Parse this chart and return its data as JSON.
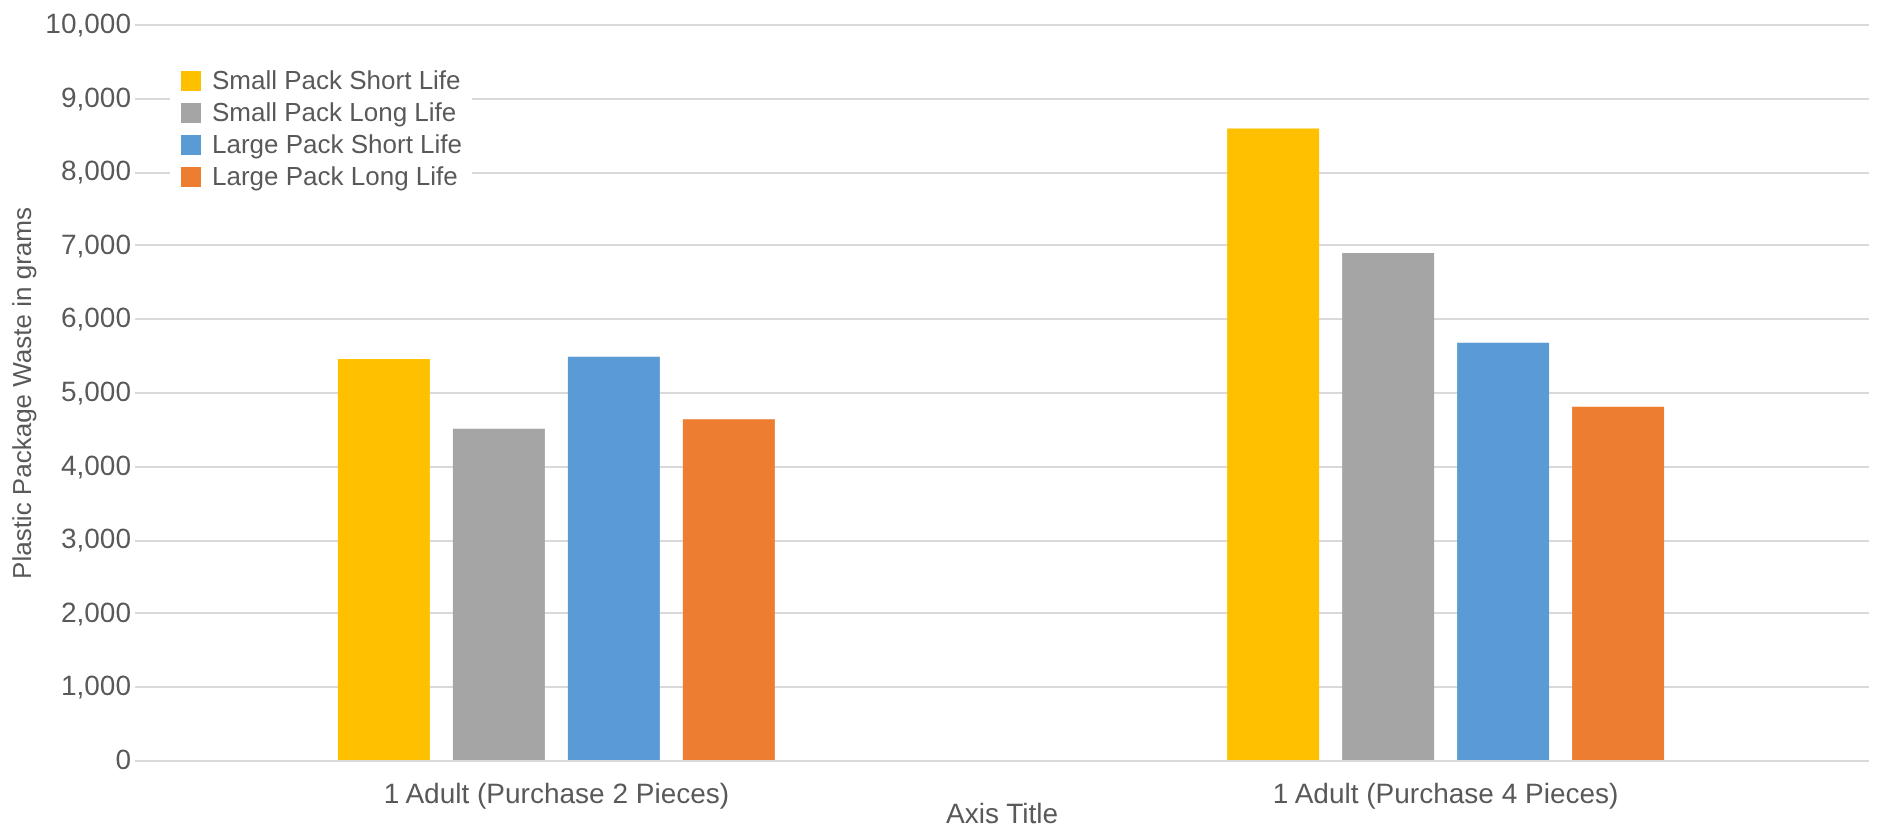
{
  "chart_data": {
    "type": "bar",
    "xlabel": "Axis Title",
    "ylabel": "Plastic Package Waste in grams",
    "categories": [
      "1 Adult (Purchase 2 Pieces)",
      "1 Adult (Purchase 4 Pieces)"
    ],
    "series": [
      {
        "name": "Small Pack Short Life",
        "color": "#ffc000",
        "values": [
          5450,
          8580
        ]
      },
      {
        "name": "Small Pack Long Life",
        "color": "#a5a5a5",
        "values": [
          4500,
          6890
        ]
      },
      {
        "name": "Large Pack Short Life",
        "color": "#5b9bd5",
        "values": [
          5480,
          5670
        ]
      },
      {
        "name": "Large Pack Long Life",
        "color": "#ed7d31",
        "values": [
          4630,
          4800
        ]
      }
    ],
    "ylim": [
      0,
      10000
    ],
    "yticks": [
      0,
      {
        "value": 1000,
        "label": "1,000"
      },
      {
        "value": 2000,
        "label": "2,000"
      },
      {
        "value": 3000,
        "label": "3,000"
      },
      {
        "value": 4000,
        "label": "4,000"
      },
      {
        "value": 5000,
        "label": "5,000"
      },
      {
        "value": 6000,
        "label": "6,000"
      },
      {
        "value": 7000,
        "label": "7,000"
      },
      {
        "value": 8000,
        "label": "8,000"
      },
      {
        "value": 9000,
        "label": "9,000"
      },
      {
        "value": 10000,
        "label": "10,000"
      }
    ],
    "grid": "y",
    "legend": "top left"
  }
}
